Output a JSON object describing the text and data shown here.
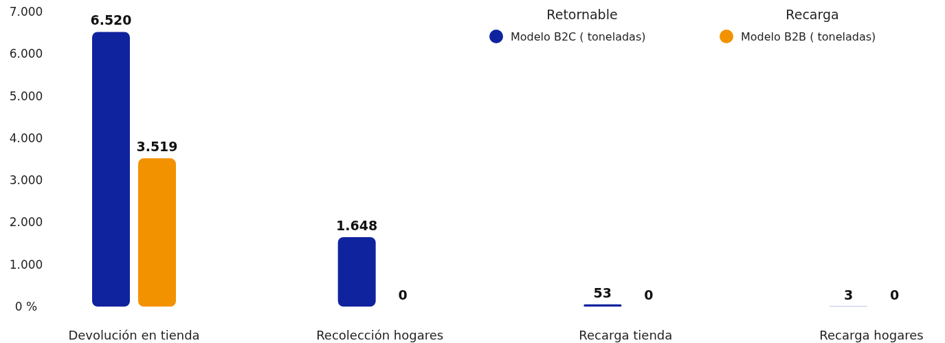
{
  "chart_data": {
    "type": "bar",
    "categories": [
      "Devolución en tienda",
      "Recolección hogares",
      "Recarga tienda",
      "Recarga hogares"
    ],
    "series": [
      {
        "name": "Modelo B2C ( toneladas)",
        "color": "#10239e",
        "values": [
          6520,
          1648,
          53,
          3
        ],
        "value_labels": [
          "6.520",
          "1.648",
          "53",
          "3"
        ]
      },
      {
        "name": "Modelo B2B ( toneladas)",
        "color": "#f39200",
        "values": [
          3519,
          0,
          0,
          0
        ],
        "value_labels": [
          "3.519",
          "0",
          "0",
          "0"
        ]
      }
    ],
    "ylim": [
      0,
      7000
    ],
    "yticks": [
      {
        "value": 0,
        "label": "0 %"
      },
      {
        "value": 1000,
        "label": "1.000"
      },
      {
        "value": 2000,
        "label": "2.000"
      },
      {
        "value": 3000,
        "label": "3.000"
      },
      {
        "value": 4000,
        "label": "4.000"
      },
      {
        "value": 5000,
        "label": "5.000"
      },
      {
        "value": 6000,
        "label": "6.000"
      },
      {
        "value": 7000,
        "label": "7.000"
      }
    ],
    "annotations": [
      "Retornable",
      "Recarga"
    ],
    "legend": "top right",
    "grid": false
  }
}
